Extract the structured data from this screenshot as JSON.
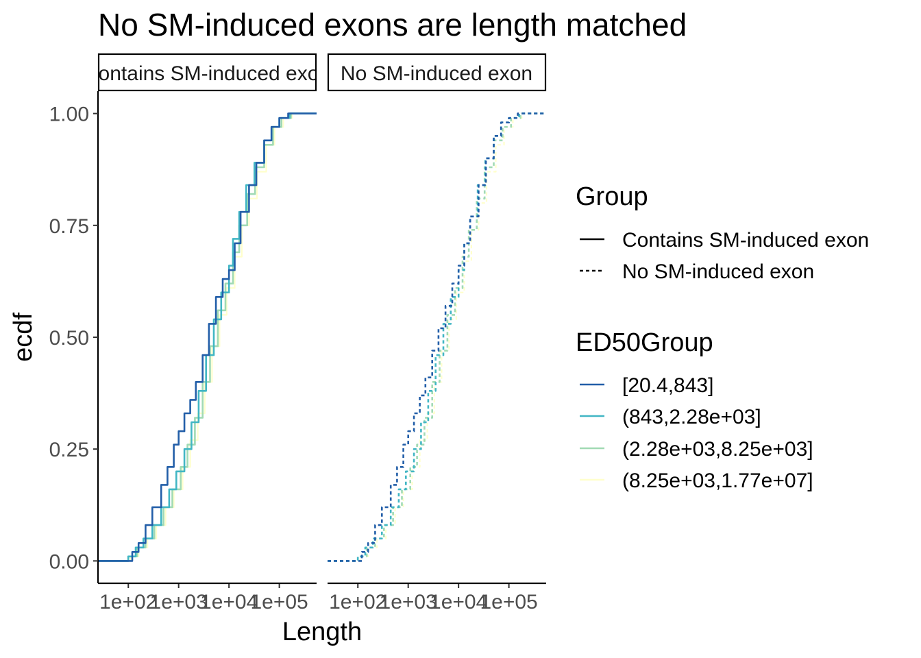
{
  "chart_data": {
    "type": "line",
    "title": "No SM-induced exons are length matched",
    "xlabel": "Length",
    "ylabel": "ecdf",
    "x_scale": "log10",
    "xlim": [
      25,
      550000
    ],
    "ylim": [
      -0.05,
      1.05
    ],
    "x_ticks": [
      {
        "value": 100,
        "label": "1e+02"
      },
      {
        "value": 1000,
        "label": "1e+03"
      },
      {
        "value": 10000,
        "label": "1e+04"
      },
      {
        "value": 100000,
        "label": "1e+05"
      }
    ],
    "y_ticks": [
      {
        "value": 0,
        "label": "0.00"
      },
      {
        "value": 0.25,
        "label": "0.25"
      },
      {
        "value": 0.5,
        "label": "0.50"
      },
      {
        "value": 0.75,
        "label": "0.75"
      },
      {
        "value": 1.0,
        "label": "1.00"
      }
    ],
    "panels": [
      {
        "label": "Contains SM-induced exon",
        "linetype": "solid"
      },
      {
        "label": "No SM-induced exon",
        "linetype": "dashed"
      }
    ],
    "legend": {
      "position": "right",
      "group_title": "Group",
      "group_items": [
        {
          "label": "Contains SM-induced exon",
          "linetype": "solid"
        },
        {
          "label": "No SM-induced exon",
          "linetype": "dashed"
        }
      ],
      "ed50_title": "ED50Group",
      "ed50_items": [
        {
          "label": "[20.4,843]",
          "color": "#225ea8"
        },
        {
          "label": "(843,2.28e+03]",
          "color": "#41b6c4"
        },
        {
          "label": "(2.28e+03,8.25e+03]",
          "color": "#a1dab4"
        },
        {
          "label": "(8.25e+03,1.77e+07]",
          "color": "#ffffcc"
        }
      ]
    },
    "series": [
      {
        "panel": 0,
        "group": 0,
        "points": [
          [
            25,
            0
          ],
          [
            80,
            0
          ],
          [
            100,
            0
          ],
          [
            120,
            0.02
          ],
          [
            160,
            0.04
          ],
          [
            220,
            0.08
          ],
          [
            300,
            0.12
          ],
          [
            450,
            0.17
          ],
          [
            600,
            0.21
          ],
          [
            800,
            0.26
          ],
          [
            1000,
            0.29
          ],
          [
            1300,
            0.33
          ],
          [
            1700,
            0.36
          ],
          [
            2200,
            0.4
          ],
          [
            3000,
            0.46
          ],
          [
            4000,
            0.53
          ],
          [
            5500,
            0.59
          ],
          [
            7500,
            0.63
          ],
          [
            10000,
            0.65
          ],
          [
            13000,
            0.71
          ],
          [
            17000,
            0.78
          ],
          [
            25000,
            0.84
          ],
          [
            35000,
            0.89
          ],
          [
            50000,
            0.94
          ],
          [
            70000,
            0.97
          ],
          [
            100000,
            0.99
          ],
          [
            150000,
            1.0
          ],
          [
            550000,
            1.0
          ]
        ]
      },
      {
        "panel": 0,
        "group": 1,
        "points": [
          [
            25,
            0
          ],
          [
            70,
            0
          ],
          [
            100,
            0.01
          ],
          [
            140,
            0.03
          ],
          [
            200,
            0.05
          ],
          [
            300,
            0.08
          ],
          [
            450,
            0.12
          ],
          [
            650,
            0.16
          ],
          [
            900,
            0.2
          ],
          [
            1300,
            0.25
          ],
          [
            1800,
            0.31
          ],
          [
            2500,
            0.38
          ],
          [
            3500,
            0.46
          ],
          [
            5000,
            0.54
          ],
          [
            7000,
            0.6
          ],
          [
            10000,
            0.66
          ],
          [
            12000,
            0.72
          ],
          [
            16000,
            0.78
          ],
          [
            22000,
            0.84
          ],
          [
            32000,
            0.89
          ],
          [
            50000,
            0.94
          ],
          [
            70000,
            0.97
          ],
          [
            100000,
            0.99
          ],
          [
            160000,
            1.0
          ],
          [
            550000,
            1.0
          ]
        ]
      },
      {
        "panel": 0,
        "group": 2,
        "points": [
          [
            25,
            0
          ],
          [
            70,
            0
          ],
          [
            100,
            0.01
          ],
          [
            150,
            0.03
          ],
          [
            220,
            0.05
          ],
          [
            330,
            0.08
          ],
          [
            500,
            0.12
          ],
          [
            750,
            0.16
          ],
          [
            1100,
            0.21
          ],
          [
            1500,
            0.26
          ],
          [
            2100,
            0.32
          ],
          [
            3000,
            0.4
          ],
          [
            4200,
            0.48
          ],
          [
            6000,
            0.56
          ],
          [
            8500,
            0.62
          ],
          [
            12000,
            0.69
          ],
          [
            16000,
            0.75
          ],
          [
            23000,
            0.82
          ],
          [
            33000,
            0.88
          ],
          [
            50000,
            0.93
          ],
          [
            75000,
            0.97
          ],
          [
            110000,
            0.99
          ],
          [
            170000,
            1.0
          ],
          [
            550000,
            1.0
          ]
        ]
      },
      {
        "panel": 0,
        "group": 3,
        "points": [
          [
            25,
            0
          ],
          [
            75,
            0
          ],
          [
            110,
            0.01
          ],
          [
            160,
            0.03
          ],
          [
            240,
            0.05
          ],
          [
            360,
            0.08
          ],
          [
            550,
            0.12
          ],
          [
            800,
            0.16
          ],
          [
            1200,
            0.21
          ],
          [
            1700,
            0.27
          ],
          [
            2400,
            0.33
          ],
          [
            3300,
            0.4
          ],
          [
            4600,
            0.48
          ],
          [
            6500,
            0.55
          ],
          [
            9000,
            0.61
          ],
          [
            13000,
            0.68
          ],
          [
            18000,
            0.75
          ],
          [
            25000,
            0.81
          ],
          [
            36000,
            0.87
          ],
          [
            55000,
            0.93
          ],
          [
            80000,
            0.97
          ],
          [
            120000,
            0.99
          ],
          [
            180000,
            1.0
          ],
          [
            550000,
            1.0
          ]
        ]
      },
      {
        "panel": 1,
        "group": 0,
        "points": [
          [
            25,
            0
          ],
          [
            80,
            0
          ],
          [
            100,
            0
          ],
          [
            120,
            0.02
          ],
          [
            160,
            0.04
          ],
          [
            220,
            0.08
          ],
          [
            300,
            0.12
          ],
          [
            450,
            0.17
          ],
          [
            600,
            0.21
          ],
          [
            800,
            0.26
          ],
          [
            1000,
            0.29
          ],
          [
            1300,
            0.33
          ],
          [
            1700,
            0.37
          ],
          [
            2200,
            0.41
          ],
          [
            3000,
            0.47
          ],
          [
            4000,
            0.52
          ],
          [
            5500,
            0.57
          ],
          [
            7500,
            0.62
          ],
          [
            10000,
            0.66
          ],
          [
            13000,
            0.71
          ],
          [
            17000,
            0.77
          ],
          [
            25000,
            0.84
          ],
          [
            35000,
            0.9
          ],
          [
            50000,
            0.95
          ],
          [
            70000,
            0.98
          ],
          [
            100000,
            0.99
          ],
          [
            150000,
            1.0
          ],
          [
            550000,
            1.0
          ]
        ]
      },
      {
        "panel": 1,
        "group": 1,
        "points": [
          [
            25,
            0
          ],
          [
            70,
            0
          ],
          [
            100,
            0.01
          ],
          [
            140,
            0.03
          ],
          [
            200,
            0.05
          ],
          [
            300,
            0.08
          ],
          [
            450,
            0.12
          ],
          [
            650,
            0.16
          ],
          [
            900,
            0.2
          ],
          [
            1300,
            0.25
          ],
          [
            1800,
            0.31
          ],
          [
            2500,
            0.38
          ],
          [
            3500,
            0.46
          ],
          [
            5000,
            0.53
          ],
          [
            7000,
            0.59
          ],
          [
            10000,
            0.65
          ],
          [
            13000,
            0.71
          ],
          [
            17000,
            0.77
          ],
          [
            24000,
            0.84
          ],
          [
            34000,
            0.9
          ],
          [
            50000,
            0.95
          ],
          [
            70000,
            0.98
          ],
          [
            100000,
            0.99
          ],
          [
            160000,
            1.0
          ],
          [
            550000,
            1.0
          ]
        ]
      },
      {
        "panel": 1,
        "group": 2,
        "points": [
          [
            25,
            0
          ],
          [
            70,
            0
          ],
          [
            100,
            0.01
          ],
          [
            150,
            0.03
          ],
          [
            220,
            0.05
          ],
          [
            330,
            0.08
          ],
          [
            500,
            0.12
          ],
          [
            750,
            0.16
          ],
          [
            1100,
            0.21
          ],
          [
            1500,
            0.26
          ],
          [
            2100,
            0.32
          ],
          [
            3000,
            0.4
          ],
          [
            4200,
            0.47
          ],
          [
            6000,
            0.55
          ],
          [
            8500,
            0.61
          ],
          [
            12000,
            0.68
          ],
          [
            16000,
            0.74
          ],
          [
            23000,
            0.81
          ],
          [
            33000,
            0.88
          ],
          [
            50000,
            0.94
          ],
          [
            75000,
            0.97
          ],
          [
            110000,
            0.99
          ],
          [
            170000,
            1.0
          ],
          [
            550000,
            1.0
          ]
        ]
      },
      {
        "panel": 1,
        "group": 3,
        "points": [
          [
            25,
            0
          ],
          [
            75,
            0
          ],
          [
            110,
            0.01
          ],
          [
            160,
            0.03
          ],
          [
            240,
            0.05
          ],
          [
            360,
            0.08
          ],
          [
            550,
            0.12
          ],
          [
            800,
            0.16
          ],
          [
            1200,
            0.21
          ],
          [
            1700,
            0.27
          ],
          [
            2400,
            0.33
          ],
          [
            3300,
            0.4
          ],
          [
            4600,
            0.47
          ],
          [
            6500,
            0.54
          ],
          [
            9000,
            0.6
          ],
          [
            13000,
            0.67
          ],
          [
            18000,
            0.74
          ],
          [
            25000,
            0.8
          ],
          [
            36000,
            0.87
          ],
          [
            55000,
            0.93
          ],
          [
            80000,
            0.97
          ],
          [
            120000,
            0.99
          ],
          [
            180000,
            1.0
          ],
          [
            550000,
            1.0
          ]
        ]
      }
    ]
  }
}
